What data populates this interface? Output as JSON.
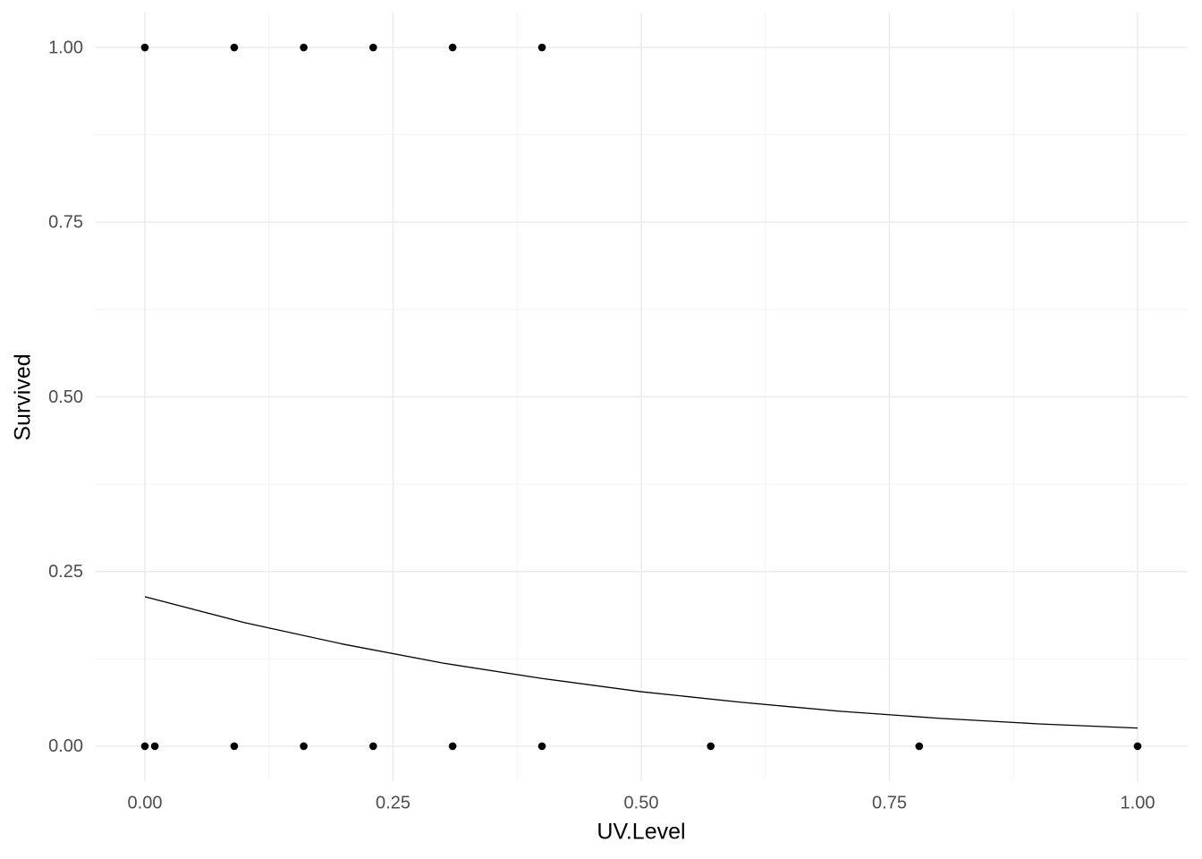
{
  "chart_data": {
    "type": "scatter",
    "x_label": "UV.Level",
    "y_label": "Survived",
    "xlim": [
      -0.05,
      1.05
    ],
    "ylim": [
      -0.05,
      1.05
    ],
    "xticks": [
      {
        "value": 0,
        "label": "0.00"
      },
      {
        "value": 0.25,
        "label": "0.25"
      },
      {
        "value": 0.5,
        "label": "0.50"
      },
      {
        "value": 0.75,
        "label": "0.75"
      },
      {
        "value": 1,
        "label": "1.00"
      }
    ],
    "yticks": [
      {
        "value": 0,
        "label": "0.00"
      },
      {
        "value": 0.25,
        "label": "0.25"
      },
      {
        "value": 0.5,
        "label": "0.50"
      },
      {
        "value": 0.75,
        "label": "0.75"
      },
      {
        "value": 1,
        "label": "1.00"
      }
    ],
    "grid": true,
    "points": {
      "color": "#000000",
      "x": [
        0,
        0.09,
        0.16,
        0.23,
        0.31,
        0.4,
        0,
        0.01,
        0.09,
        0.16,
        0.23,
        0.31,
        0.4,
        0.57,
        0.78,
        1
      ],
      "y": [
        1,
        1,
        1,
        1,
        1,
        1,
        0,
        0,
        0,
        0,
        0,
        0,
        0,
        0,
        0,
        0
      ]
    },
    "fit_line": {
      "color": "#000000",
      "x": [
        0,
        0.1,
        0.2,
        0.3,
        0.4,
        0.5,
        0.6,
        0.7,
        0.8,
        0.9,
        1
      ],
      "y": [
        0.214,
        0.177,
        0.146,
        0.119,
        0.097,
        0.078,
        0.063,
        0.05,
        0.04,
        0.032,
        0.026
      ]
    }
  }
}
